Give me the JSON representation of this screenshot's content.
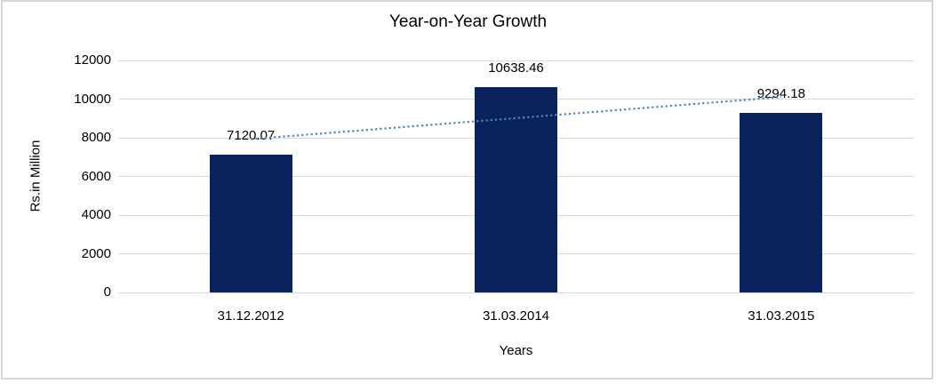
{
  "chart_data": {
    "type": "bar",
    "title": "Year-on-Year Growth",
    "xlabel": "Years",
    "ylabel": "Rs.in Million",
    "categories": [
      "31.12.2012",
      "31.03.2014",
      "31.03.2015"
    ],
    "values": [
      7120.07,
      10638.46,
      9294.18
    ],
    "data_labels": [
      "7120.07",
      "10638.46",
      "9294.18"
    ],
    "ylim": [
      0,
      12000
    ],
    "ytick_step": 2000,
    "ytick_labels": [
      "0",
      "2000",
      "4000",
      "6000",
      "8000",
      "10000",
      "12000"
    ],
    "grid": "horizontal",
    "legend": "none",
    "colors": {
      "bar": "#0a235c",
      "gridline": "#d9d9d9",
      "trendline": "#4c83c6",
      "text": "#000000",
      "frame_border": "#d7d7d7"
    },
    "trendline": {
      "type": "linear",
      "style": "dotted"
    }
  }
}
